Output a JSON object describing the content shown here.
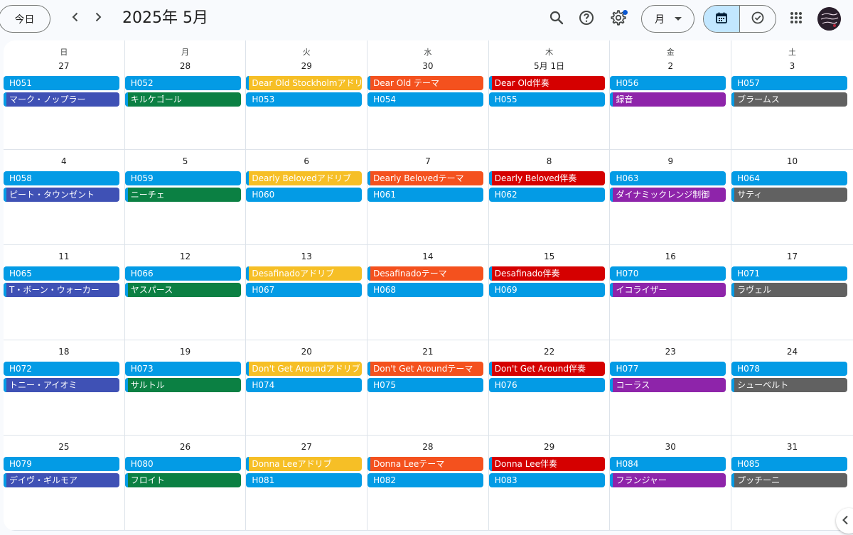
{
  "header": {
    "today_label": "今日",
    "title": "2025年 5月",
    "view_label": "月"
  },
  "weekdays": [
    "日",
    "月",
    "火",
    "水",
    "木",
    "金",
    "土"
  ],
  "colors": {
    "blue": "#039be5",
    "navy": "#3f51b5",
    "green": "#0b8043",
    "yellow": "#f6bf26",
    "orange": "#f4511e",
    "red": "#d50000",
    "purple": "#8e24aa",
    "gray": "#616161"
  },
  "weeks": [
    [
      {
        "date": "27",
        "events": [
          {
            "title": "H051",
            "color": "blue"
          },
          {
            "title": "マーク・ノップラー",
            "color": "navy"
          }
        ]
      },
      {
        "date": "28",
        "events": [
          {
            "title": "H052",
            "color": "blue"
          },
          {
            "title": "キルケゴール",
            "color": "green"
          }
        ]
      },
      {
        "date": "29",
        "events": [
          {
            "title": "Dear Old Stockholmアドリブ",
            "color": "yellow"
          },
          {
            "title": "H053",
            "color": "blue"
          }
        ]
      },
      {
        "date": "30",
        "events": [
          {
            "title": "Dear Old テーマ",
            "color": "orange"
          },
          {
            "title": "H054",
            "color": "blue"
          }
        ]
      },
      {
        "date": "5月 1日",
        "events": [
          {
            "title": "Dear Old伴奏",
            "color": "red"
          },
          {
            "title": "H055",
            "color": "blue"
          }
        ]
      },
      {
        "date": "2",
        "events": [
          {
            "title": "H056",
            "color": "blue"
          },
          {
            "title": "録音",
            "color": "purple"
          }
        ]
      },
      {
        "date": "3",
        "events": [
          {
            "title": "H057",
            "color": "blue"
          },
          {
            "title": "ブラームス",
            "color": "gray"
          }
        ]
      }
    ],
    [
      {
        "date": "4",
        "events": [
          {
            "title": "H058",
            "color": "blue"
          },
          {
            "title": "ピート・タウンゼント",
            "color": "navy"
          }
        ]
      },
      {
        "date": "5",
        "events": [
          {
            "title": "H059",
            "color": "blue"
          },
          {
            "title": "ニーチェ",
            "color": "green"
          }
        ]
      },
      {
        "date": "6",
        "events": [
          {
            "title": "Dearly Belovedアドリブ",
            "color": "yellow"
          },
          {
            "title": "H060",
            "color": "blue"
          }
        ]
      },
      {
        "date": "7",
        "events": [
          {
            "title": "Dearly Belovedテーマ",
            "color": "orange"
          },
          {
            "title": "H061",
            "color": "blue"
          }
        ]
      },
      {
        "date": "8",
        "events": [
          {
            "title": "Dearly Beloved伴奏",
            "color": "red"
          },
          {
            "title": "H062",
            "color": "blue"
          }
        ]
      },
      {
        "date": "9",
        "events": [
          {
            "title": "H063",
            "color": "blue"
          },
          {
            "title": "ダイナミックレンジ制御",
            "color": "purple"
          }
        ]
      },
      {
        "date": "10",
        "events": [
          {
            "title": "H064",
            "color": "blue"
          },
          {
            "title": "サティ",
            "color": "gray"
          }
        ]
      }
    ],
    [
      {
        "date": "11",
        "events": [
          {
            "title": "H065",
            "color": "blue"
          },
          {
            "title": "T・ボーン・ウォーカー",
            "color": "navy"
          }
        ]
      },
      {
        "date": "12",
        "events": [
          {
            "title": "H066",
            "color": "blue"
          },
          {
            "title": "ヤスパース",
            "color": "green"
          }
        ]
      },
      {
        "date": "13",
        "events": [
          {
            "title": "Desafinadoアドリブ",
            "color": "yellow"
          },
          {
            "title": "H067",
            "color": "blue"
          }
        ]
      },
      {
        "date": "14",
        "events": [
          {
            "title": "Desafinadoテーマ",
            "color": "orange"
          },
          {
            "title": "H068",
            "color": "blue"
          }
        ]
      },
      {
        "date": "15",
        "events": [
          {
            "title": "Desafinado伴奏",
            "color": "red"
          },
          {
            "title": "H069",
            "color": "blue"
          }
        ]
      },
      {
        "date": "16",
        "events": [
          {
            "title": "H070",
            "color": "blue"
          },
          {
            "title": "イコライザー",
            "color": "purple"
          }
        ]
      },
      {
        "date": "17",
        "events": [
          {
            "title": "H071",
            "color": "blue"
          },
          {
            "title": "ラヴェル",
            "color": "gray"
          }
        ]
      }
    ],
    [
      {
        "date": "18",
        "events": [
          {
            "title": "H072",
            "color": "blue"
          },
          {
            "title": "トニー・アイオミ",
            "color": "navy"
          }
        ]
      },
      {
        "date": "19",
        "events": [
          {
            "title": "H073",
            "color": "blue"
          },
          {
            "title": "サルトル",
            "color": "green"
          }
        ]
      },
      {
        "date": "20",
        "events": [
          {
            "title": "Don't Get Aroundアドリブ",
            "color": "yellow"
          },
          {
            "title": "H074",
            "color": "blue"
          }
        ]
      },
      {
        "date": "21",
        "events": [
          {
            "title": "Don't Get Aroundテーマ",
            "color": "orange"
          },
          {
            "title": "H075",
            "color": "blue"
          }
        ]
      },
      {
        "date": "22",
        "events": [
          {
            "title": "Don't Get Around伴奏",
            "color": "red"
          },
          {
            "title": "H076",
            "color": "blue"
          }
        ]
      },
      {
        "date": "23",
        "events": [
          {
            "title": "H077",
            "color": "blue"
          },
          {
            "title": "コーラス",
            "color": "purple"
          }
        ]
      },
      {
        "date": "24",
        "events": [
          {
            "title": "H078",
            "color": "blue"
          },
          {
            "title": "シューベルト",
            "color": "gray"
          }
        ]
      }
    ],
    [
      {
        "date": "25",
        "events": [
          {
            "title": "H079",
            "color": "blue"
          },
          {
            "title": "デイヴ・ギルモア",
            "color": "navy"
          }
        ]
      },
      {
        "date": "26",
        "events": [
          {
            "title": "H080",
            "color": "blue"
          },
          {
            "title": "フロイト",
            "color": "green"
          }
        ]
      },
      {
        "date": "27",
        "events": [
          {
            "title": "Donna Leeアドリブ",
            "color": "yellow"
          },
          {
            "title": "H081",
            "color": "blue"
          }
        ]
      },
      {
        "date": "28",
        "events": [
          {
            "title": "Donna Leeテーマ",
            "color": "orange"
          },
          {
            "title": "H082",
            "color": "blue"
          }
        ]
      },
      {
        "date": "29",
        "events": [
          {
            "title": "Donna Lee伴奏",
            "color": "red"
          },
          {
            "title": "H083",
            "color": "blue"
          }
        ]
      },
      {
        "date": "30",
        "events": [
          {
            "title": "H084",
            "color": "blue"
          },
          {
            "title": "フランジャー",
            "color": "purple"
          }
        ]
      },
      {
        "date": "31",
        "events": [
          {
            "title": "H085",
            "color": "blue"
          },
          {
            "title": "プッチーニ",
            "color": "gray"
          }
        ]
      }
    ]
  ]
}
